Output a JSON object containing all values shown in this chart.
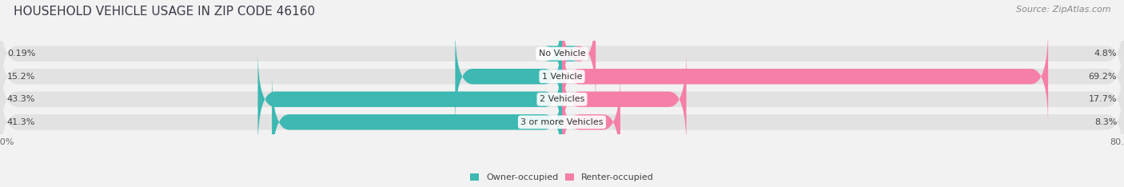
{
  "title": "HOUSEHOLD VEHICLE USAGE IN ZIP CODE 46160",
  "source": "Source: ZipAtlas.com",
  "categories": [
    "No Vehicle",
    "1 Vehicle",
    "2 Vehicles",
    "3 or more Vehicles"
  ],
  "owner_values": [
    0.19,
    15.2,
    43.3,
    41.3
  ],
  "renter_values": [
    4.8,
    69.2,
    17.7,
    8.3
  ],
  "owner_color": "#3db8b2",
  "renter_color": "#f57fa8",
  "axis_min": -80.0,
  "axis_max": 80.0,
  "bg_color": "#f2f2f2",
  "bar_bg_color": "#e2e2e2",
  "bar_height": 0.68,
  "title_fontsize": 11,
  "source_fontsize": 8,
  "label_fontsize": 8,
  "category_fontsize": 8,
  "tick_fontsize": 8,
  "title_color": "#3a3a4a",
  "label_color": "#444444",
  "tick_color": "#666666",
  "source_color": "#888888"
}
